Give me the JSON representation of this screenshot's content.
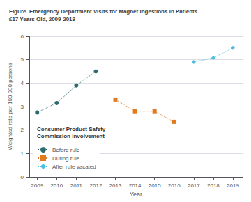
{
  "chart_data": {
    "type": "line",
    "title": "Figure. Emergency Department Visits for Magnet Ingestions in Patients\n≤17 Years Old, 2009-2019",
    "xlabel": "Year",
    "ylabel": "Weighted rate per 100 000 persons",
    "x": [
      2009,
      2010,
      2011,
      2012,
      2013,
      2014,
      2015,
      2016,
      2017,
      2018,
      2019
    ],
    "series": [
      {
        "name": "Before rule",
        "color": "#2d6b6e",
        "marker": "circle",
        "line_style": "dotted",
        "values": [
          2.75,
          3.15,
          3.9,
          4.5,
          null,
          null,
          null,
          null,
          null,
          null,
          null
        ]
      },
      {
        "name": "During rule",
        "color": "#e07b20",
        "marker": "square",
        "line_style": "dotted",
        "values": [
          null,
          null,
          null,
          null,
          3.3,
          2.8,
          2.8,
          2.35,
          null,
          null,
          null
        ]
      },
      {
        "name": "After rule vacated",
        "color": "#4bbfde",
        "marker": "diamond",
        "line_style": "dotted",
        "values": [
          null,
          null,
          null,
          null,
          null,
          null,
          null,
          null,
          4.9,
          5.08,
          5.5
        ]
      }
    ],
    "xlim": [
      2008.6,
      2019.5
    ],
    "xticks": [
      2009,
      2010,
      2011,
      2012,
      2013,
      2014,
      2015,
      2016,
      2017,
      2018,
      2019
    ],
    "ylim": [
      0,
      6
    ],
    "yticks": [
      0,
      1,
      2,
      3,
      4,
      5,
      6
    ],
    "grid": true,
    "legend": "lower left",
    "legend_title": "Consumer Product Safety\nCommission involvement"
  }
}
